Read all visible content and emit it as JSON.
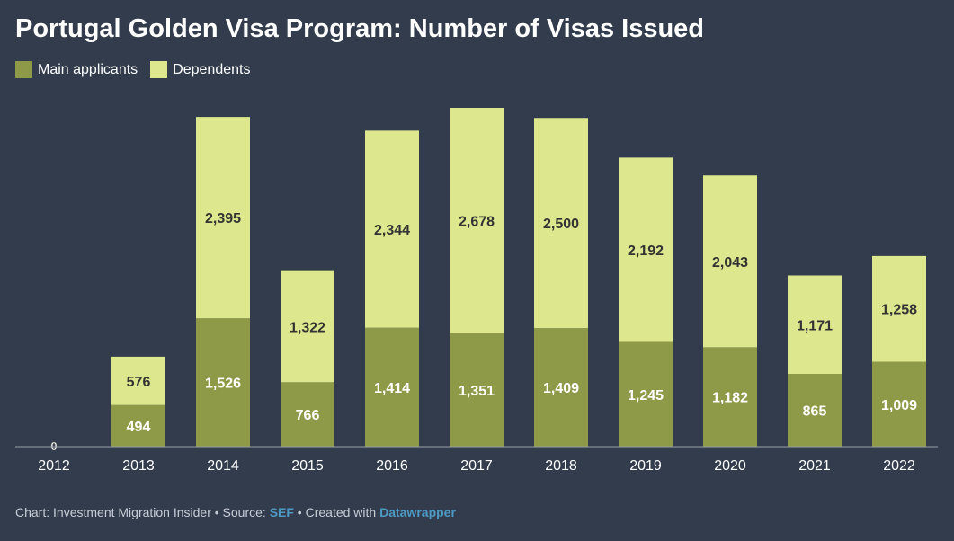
{
  "title": "Portugal Golden Visa Program: Number of Visas Issued",
  "footer": {
    "prefix": "Chart: Investment Migration Insider • Source: ",
    "source": "SEF",
    "mid": " • Created with ",
    "tool": "Datawrapper"
  },
  "colors": {
    "background": "#323c4d",
    "main": "#8f9a48",
    "dependents": "#dde78d"
  },
  "chart_data": {
    "type": "bar",
    "stacked": true,
    "title": "Portugal Golden Visa Program: Number of Visas Issued",
    "legend_position": "top-left",
    "grid": false,
    "categories": [
      "2012",
      "2013",
      "2014",
      "2015",
      "2016",
      "2017",
      "2018",
      "2019",
      "2020",
      "2021",
      "2022"
    ],
    "series": [
      {
        "name": "Main applicants",
        "color": "#8f9a48",
        "values": [
          0,
          494,
          1526,
          766,
          1414,
          1351,
          1409,
          1245,
          1182,
          865,
          1009
        ],
        "labels": [
          "0",
          "494",
          "1,526",
          "766",
          "1,414",
          "1,351",
          "1,409",
          "1,245",
          "1,182",
          "865",
          "1,009"
        ]
      },
      {
        "name": "Dependents",
        "color": "#dde78d",
        "values": [
          0,
          576,
          2395,
          1322,
          2344,
          2678,
          2500,
          2192,
          2043,
          1171,
          1258
        ],
        "labels": [
          "",
          "576",
          "2,395",
          "1,322",
          "2,344",
          "2,678",
          "2,500",
          "2,192",
          "2,043",
          "1,171",
          "1,258"
        ]
      }
    ]
  }
}
